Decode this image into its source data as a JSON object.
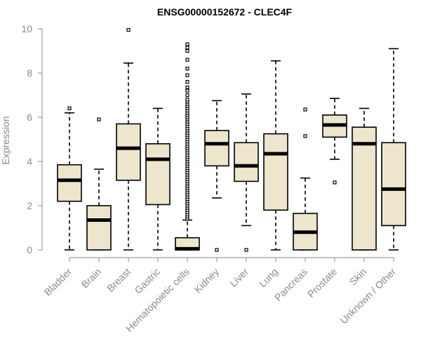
{
  "chart_data": {
    "type": "boxplot",
    "title": "ENSG00000152672 - CLEC4F",
    "xlabel": "",
    "ylabel": "Expression",
    "ylim": [
      0,
      10
    ],
    "yticks": [
      0,
      2,
      4,
      6,
      8,
      10
    ],
    "categories": [
      "Bladder",
      "Brain",
      "Breast",
      "Gastric",
      "Hematopoietic cells",
      "Kidney",
      "Liver",
      "Lung",
      "Pancreas",
      "Prostate",
      "Skin",
      "Unknown / Other"
    ],
    "boxes": [
      {
        "name": "Bladder",
        "min": 0.0,
        "q1": 2.2,
        "median": 3.15,
        "q3": 3.85,
        "max": 6.2,
        "outliers": [
          6.4
        ]
      },
      {
        "name": "Brain",
        "min": 0.0,
        "q1": 0.0,
        "median": 1.35,
        "q3": 2.0,
        "max": 3.65,
        "outliers": [
          5.9
        ]
      },
      {
        "name": "Breast",
        "min": 0.0,
        "q1": 3.15,
        "median": 4.6,
        "q3": 5.7,
        "max": 8.45,
        "outliers": [
          9.95
        ]
      },
      {
        "name": "Gastric",
        "min": 0.0,
        "q1": 2.05,
        "median": 4.1,
        "q3": 4.8,
        "max": 6.4,
        "outliers": []
      },
      {
        "name": "Hematopoietic cells",
        "min": 0.0,
        "q1": 0.0,
        "median": 0.05,
        "q3": 0.55,
        "max": 1.35,
        "outliers": [
          1.4,
          1.5,
          1.6,
          1.7,
          1.8,
          1.9,
          2.0,
          2.1,
          2.2,
          2.3,
          2.4,
          2.5,
          2.6,
          2.7,
          2.8,
          2.9,
          3.0,
          3.1,
          3.2,
          3.3,
          3.4,
          3.5,
          3.6,
          3.7,
          3.8,
          3.9,
          4.0,
          4.1,
          4.2,
          4.3,
          4.4,
          4.5,
          4.6,
          4.7,
          4.8,
          4.9,
          5.0,
          5.1,
          5.2,
          5.3,
          5.4,
          5.5,
          5.6,
          5.7,
          5.8,
          5.9,
          6.0,
          6.1,
          6.2,
          6.3,
          6.4,
          6.5,
          6.6,
          6.7,
          6.8,
          7.0,
          7.2,
          7.35,
          7.6,
          7.9,
          8.2,
          8.6,
          9.0,
          9.15,
          9.3
        ]
      },
      {
        "name": "Kidney",
        "min": 2.35,
        "q1": 3.8,
        "median": 4.8,
        "q3": 5.4,
        "max": 6.75,
        "outliers": [
          0.0
        ]
      },
      {
        "name": "Liver",
        "min": 1.1,
        "q1": 3.1,
        "median": 3.8,
        "q3": 4.85,
        "max": 7.05,
        "outliers": [
          0.0
        ]
      },
      {
        "name": "Lung",
        "min": 0.0,
        "q1": 1.8,
        "median": 4.35,
        "q3": 5.25,
        "max": 8.55,
        "outliers": []
      },
      {
        "name": "Pancreas",
        "min": 0.0,
        "q1": 0.0,
        "median": 0.8,
        "q3": 1.65,
        "max": 3.25,
        "outliers": [
          5.15,
          6.35
        ]
      },
      {
        "name": "Prostate",
        "min": 4.1,
        "q1": 5.1,
        "median": 5.65,
        "q3": 6.1,
        "max": 6.85,
        "outliers": [
          3.05
        ]
      },
      {
        "name": "Skin",
        "min": 0.0,
        "q1": 0.0,
        "median": 4.8,
        "q3": 5.55,
        "max": 6.4,
        "outliers": []
      },
      {
        "name": "Unknown / Other",
        "min": 0.0,
        "q1": 1.1,
        "median": 2.75,
        "q3": 4.85,
        "max": 9.1,
        "outliers": []
      }
    ]
  }
}
